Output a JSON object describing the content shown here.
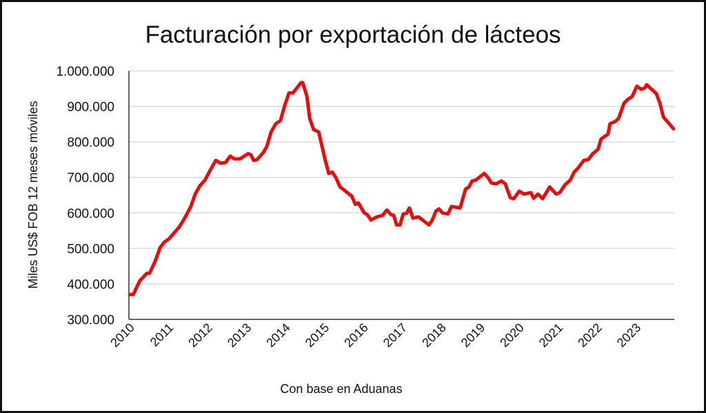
{
  "chart_data": {
    "type": "line",
    "title": "Facturación por exportación de lácteos",
    "xlabel": "Con base en Aduanas",
    "ylabel": "Miles US$ FOB 12 meses móviles",
    "ylim": [
      300000,
      1000000
    ],
    "xlim": [
      2010,
      2024
    ],
    "grid": true,
    "line_color": "#e01010",
    "y_ticks": [
      {
        "value": 300000,
        "label": "300.000"
      },
      {
        "value": 400000,
        "label": "400.000"
      },
      {
        "value": 500000,
        "label": "500.000"
      },
      {
        "value": 600000,
        "label": "600.000"
      },
      {
        "value": 700000,
        "label": "700.000"
      },
      {
        "value": 800000,
        "label": "800.000"
      },
      {
        "value": 900000,
        "label": "900.000"
      },
      {
        "value": 1000000,
        "label": "1.000.000"
      }
    ],
    "x_ticks": [
      "2010",
      "2011",
      "2012",
      "2013",
      "2014",
      "2015",
      "2016",
      "2017",
      "2018",
      "2019",
      "2020",
      "2021",
      "2022",
      "2023"
    ],
    "series": [
      {
        "name": "Facturación",
        "points": [
          [
            2010.02,
            370000
          ],
          [
            2010.11,
            370000
          ],
          [
            2010.28,
            409000
          ],
          [
            2010.46,
            430000
          ],
          [
            2010.53,
            430000
          ],
          [
            2010.67,
            463000
          ],
          [
            2010.8,
            502000
          ],
          [
            2010.9,
            517000
          ],
          [
            2011.03,
            527000
          ],
          [
            2011.29,
            560000
          ],
          [
            2011.43,
            585000
          ],
          [
            2011.59,
            618000
          ],
          [
            2011.7,
            653000
          ],
          [
            2011.82,
            676000
          ],
          [
            2011.95,
            692000
          ],
          [
            2012.09,
            721000
          ],
          [
            2012.23,
            748000
          ],
          [
            2012.35,
            740000
          ],
          [
            2012.48,
            742000
          ],
          [
            2012.6,
            760000
          ],
          [
            2012.71,
            752000
          ],
          [
            2012.85,
            752000
          ],
          [
            2013.06,
            767000
          ],
          [
            2013.13,
            764000
          ],
          [
            2013.2,
            748000
          ],
          [
            2013.29,
            750000
          ],
          [
            2013.45,
            770000
          ],
          [
            2013.54,
            787000
          ],
          [
            2013.65,
            828000
          ],
          [
            2013.77,
            851000
          ],
          [
            2013.89,
            860000
          ],
          [
            2014.0,
            903000
          ],
          [
            2014.11,
            938000
          ],
          [
            2014.21,
            938000
          ],
          [
            2014.42,
            967000
          ],
          [
            2014.46,
            967000
          ],
          [
            2014.57,
            928000
          ],
          [
            2014.64,
            866000
          ],
          [
            2014.74,
            835000
          ],
          [
            2014.87,
            828000
          ],
          [
            2015.04,
            748000
          ],
          [
            2015.13,
            711000
          ],
          [
            2015.22,
            715000
          ],
          [
            2015.31,
            700000
          ],
          [
            2015.42,
            673000
          ],
          [
            2015.54,
            663000
          ],
          [
            2015.72,
            647000
          ],
          [
            2015.81,
            624000
          ],
          [
            2015.89,
            628000
          ],
          [
            2016.04,
            600000
          ],
          [
            2016.12,
            595000
          ],
          [
            2016.21,
            580000
          ],
          [
            2016.37,
            589000
          ],
          [
            2016.51,
            593000
          ],
          [
            2016.62,
            608000
          ],
          [
            2016.73,
            595000
          ],
          [
            2016.8,
            593000
          ],
          [
            2016.87,
            566000
          ],
          [
            2016.96,
            566000
          ],
          [
            2017.04,
            597000
          ],
          [
            2017.13,
            599000
          ],
          [
            2017.2,
            614000
          ],
          [
            2017.29,
            585000
          ],
          [
            2017.43,
            589000
          ],
          [
            2017.54,
            580000
          ],
          [
            2017.7,
            566000
          ],
          [
            2017.79,
            580000
          ],
          [
            2017.88,
            605000
          ],
          [
            2017.96,
            611000
          ],
          [
            2018.05,
            600000
          ],
          [
            2018.19,
            597000
          ],
          [
            2018.28,
            618000
          ],
          [
            2018.5,
            614000
          ],
          [
            2018.55,
            632000
          ],
          [
            2018.64,
            667000
          ],
          [
            2018.73,
            673000
          ],
          [
            2018.81,
            690000
          ],
          [
            2018.9,
            692000
          ],
          [
            2019.12,
            711000
          ],
          [
            2019.2,
            702000
          ],
          [
            2019.31,
            684000
          ],
          [
            2019.43,
            682000
          ],
          [
            2019.56,
            690000
          ],
          [
            2019.66,
            682000
          ],
          [
            2019.79,
            643000
          ],
          [
            2019.88,
            640000
          ],
          [
            2020.02,
            661000
          ],
          [
            2020.14,
            653000
          ],
          [
            2020.32,
            657000
          ],
          [
            2020.39,
            641000
          ],
          [
            2020.5,
            653000
          ],
          [
            2020.62,
            640000
          ],
          [
            2020.8,
            673000
          ],
          [
            2020.97,
            653000
          ],
          [
            2021.06,
            657000
          ],
          [
            2021.2,
            680000
          ],
          [
            2021.33,
            692000
          ],
          [
            2021.43,
            715000
          ],
          [
            2021.52,
            725000
          ],
          [
            2021.68,
            748000
          ],
          [
            2021.79,
            750000
          ],
          [
            2021.91,
            767000
          ],
          [
            2022.04,
            779000
          ],
          [
            2022.12,
            808000
          ],
          [
            2022.3,
            822000
          ],
          [
            2022.35,
            851000
          ],
          [
            2022.48,
            857000
          ],
          [
            2022.57,
            866000
          ],
          [
            2022.71,
            909000
          ],
          [
            2022.8,
            919000
          ],
          [
            2022.92,
            928000
          ],
          [
            2023.04,
            957000
          ],
          [
            2023.15,
            948000
          ],
          [
            2023.24,
            952000
          ],
          [
            2023.29,
            961000
          ],
          [
            2023.38,
            952000
          ],
          [
            2023.54,
            936000
          ],
          [
            2023.63,
            909000
          ],
          [
            2023.72,
            870000
          ],
          [
            2023.98,
            837000
          ]
        ]
      }
    ]
  }
}
